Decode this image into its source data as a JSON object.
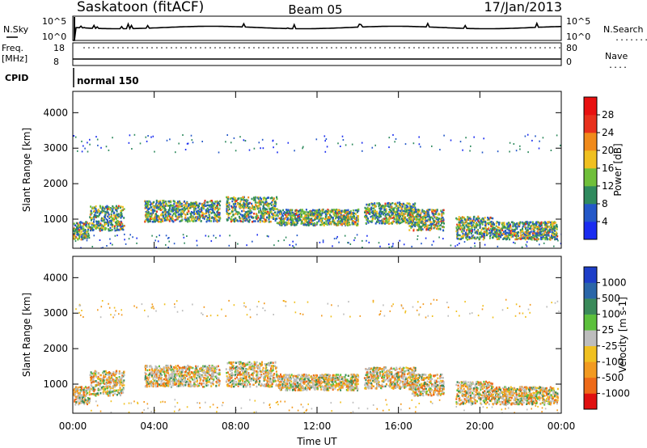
{
  "header": {
    "station": "Saskatoon (fitACF)",
    "beam": "Beam 05",
    "date": "17/Jan/2013"
  },
  "top_panels": {
    "nsky_label": "N.Sky",
    "nsky_ticks": [
      "10^5",
      "10^0"
    ],
    "nsearch_label": "N.Search",
    "nsearch_ticks": [
      "10^5",
      "10^0"
    ],
    "freq_label": "Freq.",
    "freq_unit": "[MHz]",
    "freq_ticks": [
      "18",
      "8"
    ],
    "nave_label": "Nave",
    "nave_ticks": [
      "80",
      "0"
    ],
    "cpid_label": "CPID",
    "cpid_value": "normal 150"
  },
  "chart_data": [
    {
      "type": "heatmap",
      "name": "power",
      "ylabel": "Slant Range [km]",
      "ylim": [
        180,
        4600
      ],
      "yticks": [
        "1000",
        "2000",
        "3000",
        "4000"
      ],
      "yticks_values": [
        1000,
        2000,
        3000,
        4000
      ],
      "colorbar": {
        "label": "Power [dB]",
        "ticks": [
          "4",
          "8",
          "12",
          "16",
          "20",
          "24",
          "28"
        ],
        "colors": [
          "#1a2cf0",
          "#2458c8",
          "#2f8a5e",
          "#6fbf3a",
          "#f0c020",
          "#f08a1a",
          "#e8301c",
          "#e81010"
        ]
      }
    },
    {
      "type": "heatmap",
      "name": "velocity",
      "ylabel": "Slant Range [km]",
      "ylim": [
        180,
        4600
      ],
      "yticks": [
        "1000",
        "2000",
        "3000",
        "4000"
      ],
      "yticks_values": [
        1000,
        2000,
        3000,
        4000
      ],
      "colorbar": {
        "label": "Velocity [m s-1]",
        "ticks": [
          "1000",
          "500",
          "100",
          "25",
          "-25",
          "-100",
          "-500",
          "-1000"
        ],
        "colors": [
          "#1d3ec8",
          "#2a66a8",
          "#3a8a5a",
          "#5cc03c",
          "#bdbdbd",
          "#f0c020",
          "#f29a20",
          "#ee6a18",
          "#e01010"
        ]
      }
    }
  ],
  "xaxis": {
    "label": "Time UT",
    "ticks": [
      "00:00",
      "04:00",
      "08:00",
      "12:00",
      "16:00",
      "20:00",
      "00:00"
    ],
    "tick_hours": [
      0,
      4,
      8,
      12,
      16,
      20,
      24
    ]
  }
}
